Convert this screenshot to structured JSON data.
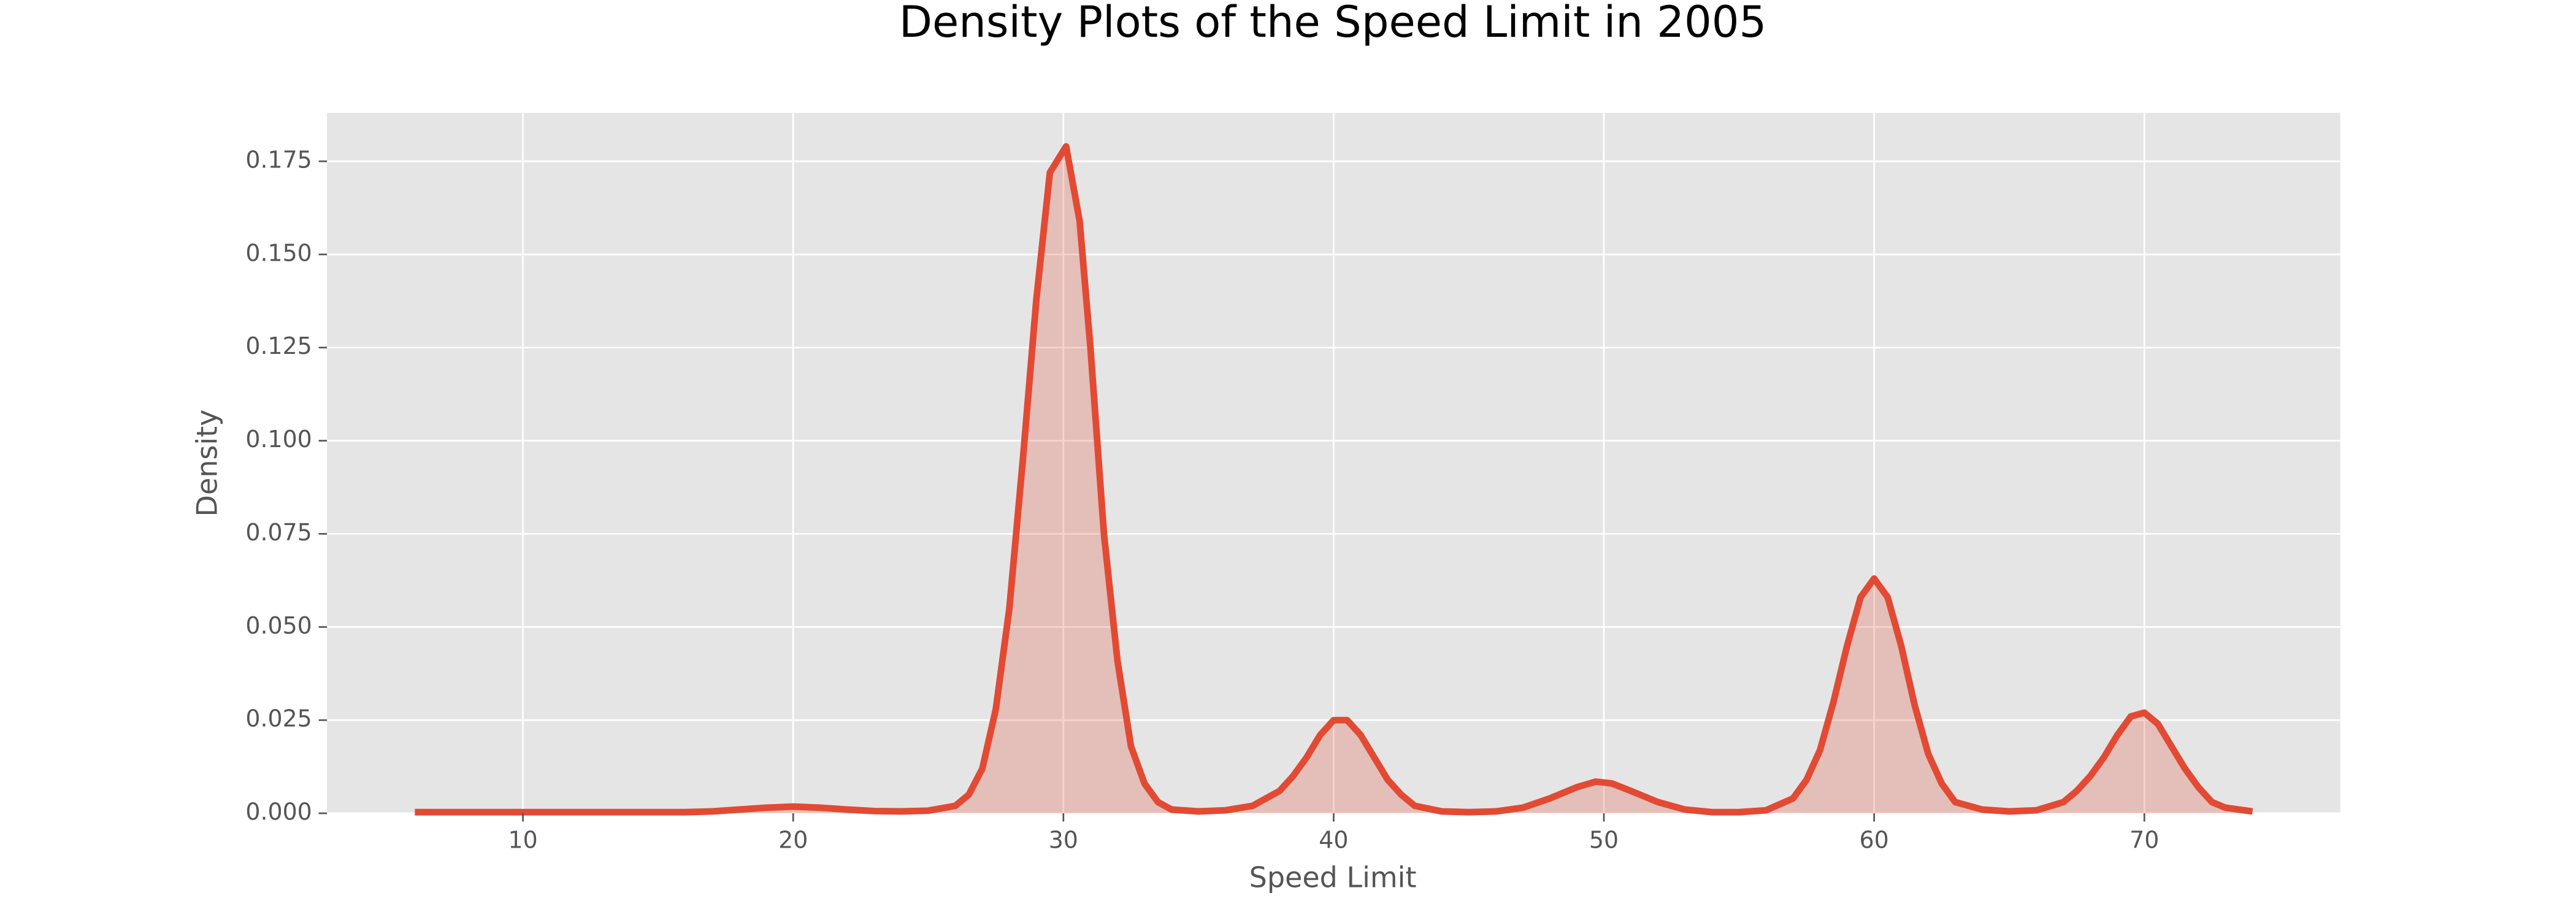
{
  "chart_data": {
    "type": "area",
    "title": "Density Plots of the Speed Limit in 2005",
    "x_label": "Speed Limit",
    "y_label": "Density",
    "color": "#e24a33",
    "grid": true,
    "xlim": [
      2.75,
      77.25
    ],
    "ylim": [
      0,
      0.188
    ],
    "xticks": [
      10,
      20,
      30,
      40,
      50,
      60,
      70
    ],
    "yticks": [
      {
        "value": 0,
        "label": "0.000"
      },
      {
        "value": 0.025,
        "label": "0.025"
      },
      {
        "value": 0.05,
        "label": "0.050"
      },
      {
        "value": 0.075,
        "label": "0.075"
      },
      {
        "value": 0.1,
        "label": "0.100"
      },
      {
        "value": 0.125,
        "label": "0.125"
      },
      {
        "value": 0.15,
        "label": "0.150"
      },
      {
        "value": 0.175,
        "label": "0.175"
      }
    ],
    "x": [
      6,
      8,
      10,
      12,
      14,
      16,
      17,
      18,
      19,
      20,
      21,
      22,
      23,
      24,
      25,
      26,
      26.5,
      27,
      27.5,
      28,
      28.5,
      29,
      29.5,
      30.1,
      30.6,
      31,
      31.5,
      32,
      32.5,
      33,
      33.5,
      34,
      35,
      36,
      37,
      38,
      38.5,
      39,
      39.5,
      40,
      40.5,
      41,
      41.5,
      42,
      42.5,
      43,
      44,
      45,
      46,
      47,
      48,
      49,
      49.7,
      50.3,
      51,
      52,
      53,
      54,
      55,
      56,
      57,
      57.5,
      58,
      58.5,
      59,
      59.5,
      60,
      60.5,
      61,
      61.5,
      62,
      62.5,
      63,
      64,
      65,
      66,
      67,
      67.5,
      68,
      68.5,
      69,
      69.5,
      70,
      70.5,
      71,
      71.5,
      72,
      72.5,
      73,
      74
    ],
    "values": [
      0.0003,
      0.0003,
      0.0003,
      0.0003,
      0.0003,
      0.0003,
      0.0005,
      0.001,
      0.0015,
      0.0018,
      0.0015,
      0.001,
      0.0006,
      0.0005,
      0.0007,
      0.002,
      0.005,
      0.012,
      0.028,
      0.055,
      0.095,
      0.138,
      0.172,
      0.179,
      0.159,
      0.125,
      0.075,
      0.041,
      0.018,
      0.008,
      0.003,
      0.001,
      0.0005,
      0.0008,
      0.002,
      0.006,
      0.01,
      0.015,
      0.021,
      0.025,
      0.025,
      0.021,
      0.015,
      0.009,
      0.005,
      0.002,
      0.0005,
      0.0003,
      0.0005,
      0.0015,
      0.004,
      0.007,
      0.0085,
      0.008,
      0.006,
      0.003,
      0.001,
      0.0003,
      0.0003,
      0.0008,
      0.004,
      0.009,
      0.017,
      0.03,
      0.045,
      0.058,
      0.063,
      0.058,
      0.045,
      0.029,
      0.016,
      0.008,
      0.003,
      0.001,
      0.0005,
      0.0008,
      0.003,
      0.006,
      0.01,
      0.015,
      0.021,
      0.026,
      0.027,
      0.024,
      0.018,
      0.012,
      0.007,
      0.003,
      0.0015,
      0.0005
    ]
  }
}
